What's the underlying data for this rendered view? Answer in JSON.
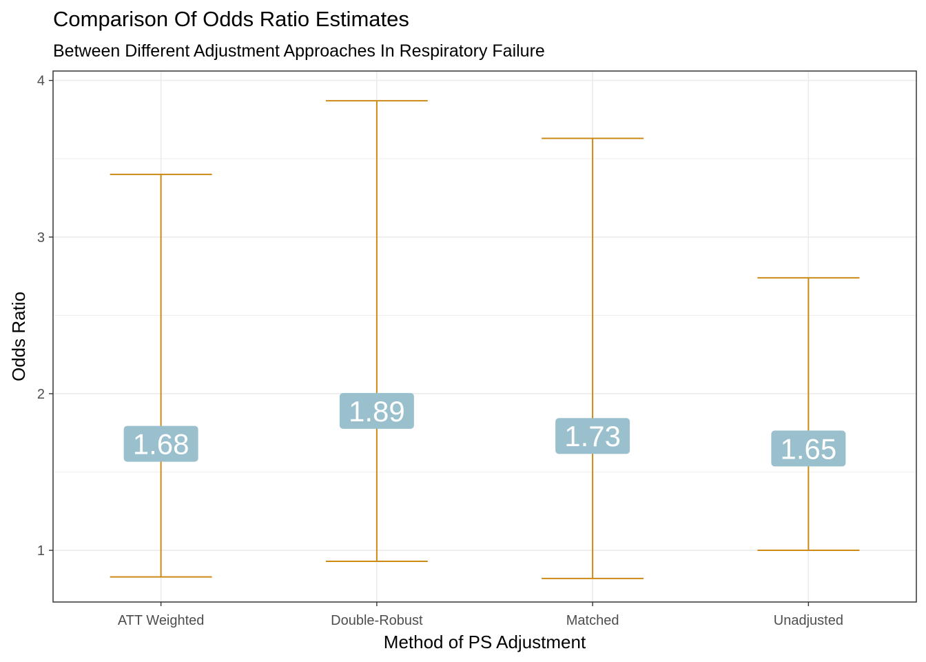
{
  "chart_data": {
    "type": "errorbar",
    "title": "Comparison Of Odds Ratio Estimates",
    "subtitle": "Between Different Adjustment Approaches In Respiratory Failure",
    "xlabel": "Method of PS Adjustment",
    "ylabel": "Odds Ratio",
    "categories": [
      "ATT Weighted",
      "Double-Robust",
      "Matched",
      "Unadjusted"
    ],
    "estimates": [
      1.68,
      1.89,
      1.73,
      1.65
    ],
    "labels": [
      "1.68",
      "1.89",
      "1.73",
      "1.65"
    ],
    "lower": [
      0.83,
      0.93,
      0.82,
      1.0
    ],
    "upper": [
      3.4,
      3.87,
      3.63,
      2.74
    ],
    "y_ticks": [
      1,
      2,
      3,
      4
    ],
    "ylim": [
      0.67,
      4.06
    ],
    "grid": true,
    "colors": {
      "errorbar": "#CC8A14",
      "label_fill": "#9BC0CD",
      "label_text": "#FFFFFF",
      "grid": "#EBEBEB",
      "panel_border": "#333333"
    }
  }
}
